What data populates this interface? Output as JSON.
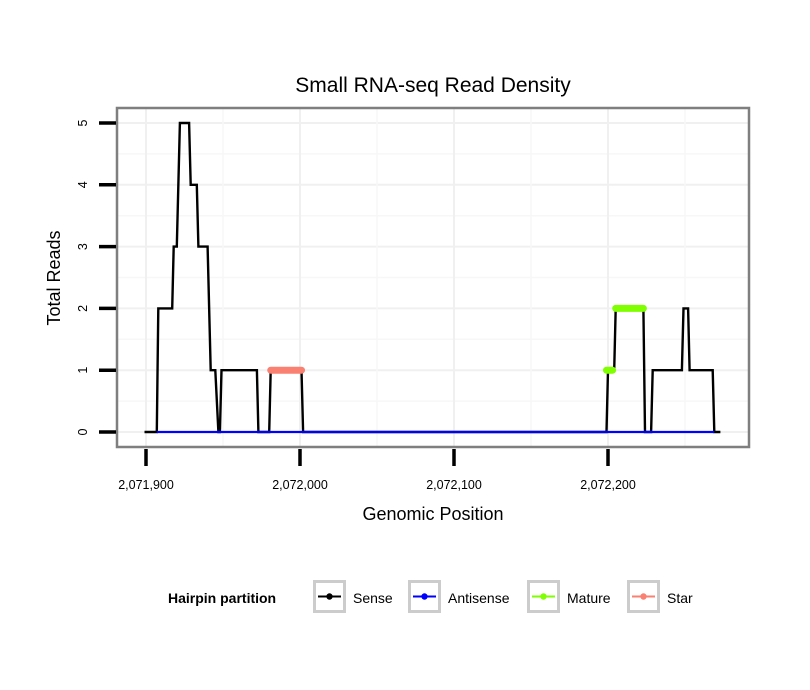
{
  "chart_data": {
    "type": "line",
    "title": "Small RNA-seq Read Density",
    "xlabel": "Genomic Position",
    "ylabel": "Total Reads",
    "xlim": [
      2071885,
      2072290
    ],
    "ylim": [
      -0.25,
      5.25
    ],
    "x_ticks": [
      2071900,
      2072000,
      2072100,
      2072200
    ],
    "x_tick_labels": [
      "2,071,900",
      "2,072,000",
      "2,072,100",
      "2,072,200"
    ],
    "y_ticks": [
      0,
      1,
      2,
      3,
      4,
      5
    ],
    "y_tick_labels": [
      "0",
      "1",
      "2",
      "3",
      "4",
      "5"
    ],
    "grid": true,
    "legend": {
      "title": "Hairpin partition",
      "position": "bottom",
      "entries": [
        {
          "label": "Sense",
          "color": "#000000"
        },
        {
          "label": "Antisense",
          "color": "#0000ff"
        },
        {
          "label": "Mature",
          "color": "#7fff00"
        },
        {
          "label": "Star",
          "color": "#fa8072"
        }
      ]
    },
    "series": [
      {
        "name": "Sense",
        "color": "#000000",
        "style": "line",
        "points": [
          [
            2071899,
            0
          ],
          [
            2071907,
            0
          ],
          [
            2071908,
            2
          ],
          [
            2071917,
            2
          ],
          [
            2071918,
            3
          ],
          [
            2071920,
            3
          ],
          [
            2071922,
            5
          ],
          [
            2071928,
            5
          ],
          [
            2071929,
            4
          ],
          [
            2071933,
            4
          ],
          [
            2071934,
            3
          ],
          [
            2071940,
            3
          ],
          [
            2071942,
            1
          ],
          [
            2071945,
            1
          ],
          [
            2071947,
            0
          ],
          [
            2071948,
            0
          ],
          [
            2071949,
            1
          ],
          [
            2071972,
            1
          ],
          [
            2071973,
            0
          ],
          [
            2071980,
            0
          ],
          [
            2071981,
            1
          ],
          [
            2072001,
            1
          ],
          [
            2072002,
            0
          ],
          [
            2072199,
            0
          ],
          [
            2072200,
            1
          ],
          [
            2072204,
            1
          ],
          [
            2072205,
            2
          ],
          [
            2072223,
            2
          ],
          [
            2072224,
            0
          ],
          [
            2072228,
            0
          ],
          [
            2072229,
            1
          ],
          [
            2072248,
            1
          ],
          [
            2072249,
            2
          ],
          [
            2072252,
            2
          ],
          [
            2072253,
            1
          ],
          [
            2072268,
            1
          ],
          [
            2072269,
            0
          ],
          [
            2072273,
            0
          ]
        ]
      },
      {
        "name": "Antisense",
        "color": "#0000ff",
        "style": "line",
        "points": [
          [
            2071907,
            0
          ],
          [
            2072269,
            0
          ]
        ]
      },
      {
        "name": "Mature",
        "color": "#7fff00",
        "style": "thick-segment",
        "segments": [
          {
            "x": [
              2072199,
              2072203
            ],
            "y": 1
          },
          {
            "x": [
              2072205,
              2072223
            ],
            "y": 2
          }
        ]
      },
      {
        "name": "Star",
        "color": "#fa8072",
        "style": "thick-segment",
        "segments": [
          {
            "x": [
              2071981,
              2072001
            ],
            "y": 1
          }
        ]
      }
    ]
  }
}
